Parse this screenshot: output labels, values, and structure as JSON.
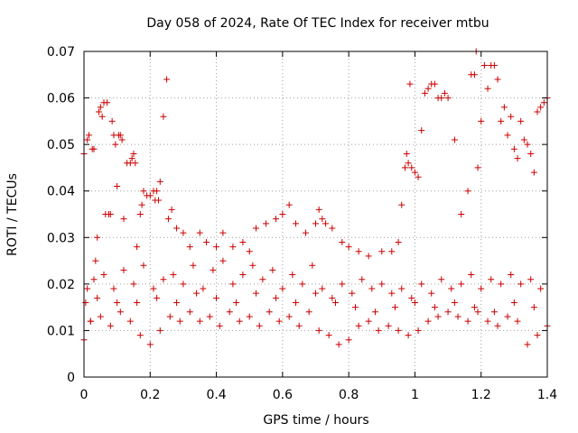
{
  "chart_data": {
    "type": "scatter",
    "title": "Day 058 of 2024, Rate Of TEC Index for receiver mtbu",
    "xlabel": "GPS time / hours",
    "ylabel": "ROTI / TECUs",
    "xlim": [
      0,
      1.4
    ],
    "ylim": [
      0,
      0.07
    ],
    "xticks": [
      0,
      0.2,
      0.4,
      0.6,
      0.8,
      1,
      1.2,
      1.4
    ],
    "yticks": [
      0,
      0.01,
      0.02,
      0.03,
      0.04,
      0.05,
      0.06,
      0.07
    ],
    "xtick_labels": [
      "0",
      "0.2",
      "0.4",
      "0.6",
      "0.8",
      "1",
      "1.2",
      "1.4"
    ],
    "ytick_labels": [
      "0",
      "0.01",
      "0.02",
      "0.03",
      "0.04",
      "0.05",
      "0.06",
      "0.07"
    ],
    "grid": true,
    "marker": "+",
    "marker_color": "#cc0000",
    "series": [
      {
        "name": "ROTI",
        "points": [
          [
            0.0,
            0.008
          ],
          [
            0.0,
            0.048
          ],
          [
            0.005,
            0.016
          ],
          [
            0.01,
            0.051
          ],
          [
            0.015,
            0.052
          ],
          [
            0.02,
            0.012
          ],
          [
            0.025,
            0.049
          ],
          [
            0.03,
            0.049
          ],
          [
            0.035,
            0.025
          ],
          [
            0.04,
            0.03
          ],
          [
            0.045,
            0.057
          ],
          [
            0.05,
            0.058
          ],
          [
            0.055,
            0.056
          ],
          [
            0.06,
            0.059
          ],
          [
            0.065,
            0.035
          ],
          [
            0.07,
            0.059
          ],
          [
            0.075,
            0.035
          ],
          [
            0.08,
            0.035
          ],
          [
            0.085,
            0.055
          ],
          [
            0.09,
            0.052
          ],
          [
            0.095,
            0.05
          ],
          [
            0.1,
            0.041
          ],
          [
            0.105,
            0.052
          ],
          [
            0.11,
            0.052
          ],
          [
            0.115,
            0.051
          ],
          [
            0.12,
            0.034
          ],
          [
            0.13,
            0.046
          ],
          [
            0.14,
            0.046
          ],
          [
            0.145,
            0.047
          ],
          [
            0.15,
            0.048
          ],
          [
            0.155,
            0.046
          ],
          [
            0.16,
            0.028
          ],
          [
            0.17,
            0.035
          ],
          [
            0.175,
            0.037
          ],
          [
            0.18,
            0.04
          ],
          [
            0.19,
            0.039
          ],
          [
            0.2,
            0.039
          ],
          [
            0.21,
            0.04
          ],
          [
            0.215,
            0.038
          ],
          [
            0.22,
            0.04
          ],
          [
            0.225,
            0.038
          ],
          [
            0.23,
            0.042
          ],
          [
            0.24,
            0.056
          ],
          [
            0.25,
            0.064
          ],
          [
            0.255,
            0.034
          ],
          [
            0.265,
            0.036
          ],
          [
            0.28,
            0.032
          ],
          [
            0.3,
            0.031
          ],
          [
            0.32,
            0.028
          ],
          [
            0.35,
            0.031
          ],
          [
            0.37,
            0.029
          ],
          [
            0.4,
            0.028
          ],
          [
            0.42,
            0.031
          ],
          [
            0.45,
            0.028
          ],
          [
            0.48,
            0.029
          ],
          [
            0.5,
            0.027
          ],
          [
            0.52,
            0.032
          ],
          [
            0.55,
            0.033
          ],
          [
            0.58,
            0.034
          ],
          [
            0.6,
            0.035
          ],
          [
            0.62,
            0.037
          ],
          [
            0.64,
            0.033
          ],
          [
            0.67,
            0.031
          ],
          [
            0.7,
            0.033
          ],
          [
            0.71,
            0.036
          ],
          [
            0.72,
            0.034
          ],
          [
            0.73,
            0.033
          ],
          [
            0.75,
            0.032
          ],
          [
            0.78,
            0.029
          ],
          [
            0.8,
            0.028
          ],
          [
            0.83,
            0.027
          ],
          [
            0.86,
            0.026
          ],
          [
            0.9,
            0.027
          ],
          [
            0.93,
            0.027
          ],
          [
            0.95,
            0.029
          ],
          [
            0.96,
            0.037
          ],
          [
            0.97,
            0.045
          ],
          [
            0.975,
            0.048
          ],
          [
            0.98,
            0.046
          ],
          [
            0.985,
            0.063
          ],
          [
            0.99,
            0.045
          ],
          [
            1.0,
            0.044
          ],
          [
            1.01,
            0.043
          ],
          [
            1.02,
            0.053
          ],
          [
            1.03,
            0.061
          ],
          [
            1.04,
            0.062
          ],
          [
            1.05,
            0.063
          ],
          [
            1.06,
            0.063
          ],
          [
            1.07,
            0.06
          ],
          [
            1.08,
            0.06
          ],
          [
            1.09,
            0.061
          ],
          [
            1.1,
            0.06
          ],
          [
            1.12,
            0.051
          ],
          [
            1.14,
            0.035
          ],
          [
            1.16,
            0.04
          ],
          [
            1.17,
            0.065
          ],
          [
            1.18,
            0.065
          ],
          [
            1.185,
            0.07
          ],
          [
            1.19,
            0.045
          ],
          [
            1.2,
            0.055
          ],
          [
            1.21,
            0.067
          ],
          [
            1.22,
            0.062
          ],
          [
            1.23,
            0.067
          ],
          [
            1.24,
            0.067
          ],
          [
            1.25,
            0.064
          ],
          [
            1.26,
            0.055
          ],
          [
            1.27,
            0.058
          ],
          [
            1.28,
            0.052
          ],
          [
            1.29,
            0.056
          ],
          [
            1.3,
            0.049
          ],
          [
            1.31,
            0.047
          ],
          [
            1.32,
            0.055
          ],
          [
            1.33,
            0.051
          ],
          [
            1.34,
            0.05
          ],
          [
            1.35,
            0.048
          ],
          [
            1.36,
            0.044
          ],
          [
            1.37,
            0.057
          ],
          [
            1.38,
            0.058
          ],
          [
            1.39,
            0.059
          ],
          [
            1.4,
            0.06
          ],
          [
            0.01,
            0.019
          ],
          [
            0.03,
            0.021
          ],
          [
            0.06,
            0.022
          ],
          [
            0.09,
            0.019
          ],
          [
            0.12,
            0.023
          ],
          [
            0.15,
            0.02
          ],
          [
            0.18,
            0.024
          ],
          [
            0.21,
            0.019
          ],
          [
            0.24,
            0.021
          ],
          [
            0.27,
            0.022
          ],
          [
            0.3,
            0.02
          ],
          [
            0.33,
            0.024
          ],
          [
            0.36,
            0.019
          ],
          [
            0.39,
            0.023
          ],
          [
            0.42,
            0.025
          ],
          [
            0.45,
            0.02
          ],
          [
            0.48,
            0.022
          ],
          [
            0.51,
            0.024
          ],
          [
            0.54,
            0.021
          ],
          [
            0.57,
            0.023
          ],
          [
            0.6,
            0.019
          ],
          [
            0.63,
            0.022
          ],
          [
            0.66,
            0.02
          ],
          [
            0.69,
            0.024
          ],
          [
            0.72,
            0.019
          ],
          [
            0.75,
            0.017
          ],
          [
            0.78,
            0.02
          ],
          [
            0.81,
            0.018
          ],
          [
            0.84,
            0.021
          ],
          [
            0.87,
            0.019
          ],
          [
            0.9,
            0.02
          ],
          [
            0.93,
            0.018
          ],
          [
            0.96,
            0.019
          ],
          [
            0.99,
            0.017
          ],
          [
            1.02,
            0.02
          ],
          [
            1.05,
            0.018
          ],
          [
            1.08,
            0.021
          ],
          [
            1.11,
            0.019
          ],
          [
            1.14,
            0.02
          ],
          [
            1.17,
            0.022
          ],
          [
            1.2,
            0.019
          ],
          [
            1.23,
            0.021
          ],
          [
            1.26,
            0.02
          ],
          [
            1.29,
            0.022
          ],
          [
            1.32,
            0.02
          ],
          [
            1.35,
            0.021
          ],
          [
            1.38,
            0.019
          ],
          [
            0.02,
            0.012
          ],
          [
            0.05,
            0.013
          ],
          [
            0.08,
            0.011
          ],
          [
            0.11,
            0.014
          ],
          [
            0.14,
            0.012
          ],
          [
            0.17,
            0.009
          ],
          [
            0.2,
            0.007
          ],
          [
            0.23,
            0.01
          ],
          [
            0.26,
            0.013
          ],
          [
            0.29,
            0.012
          ],
          [
            0.32,
            0.014
          ],
          [
            0.35,
            0.012
          ],
          [
            0.38,
            0.013
          ],
          [
            0.41,
            0.011
          ],
          [
            0.44,
            0.014
          ],
          [
            0.47,
            0.012
          ],
          [
            0.5,
            0.013
          ],
          [
            0.53,
            0.011
          ],
          [
            0.56,
            0.014
          ],
          [
            0.59,
            0.012
          ],
          [
            0.62,
            0.013
          ],
          [
            0.65,
            0.011
          ],
          [
            0.68,
            0.014
          ],
          [
            0.71,
            0.01
          ],
          [
            0.74,
            0.009
          ],
          [
            0.77,
            0.007
          ],
          [
            0.8,
            0.008
          ],
          [
            0.83,
            0.011
          ],
          [
            0.86,
            0.012
          ],
          [
            0.89,
            0.01
          ],
          [
            0.92,
            0.011
          ],
          [
            0.95,
            0.01
          ],
          [
            0.98,
            0.009
          ],
          [
            1.01,
            0.01
          ],
          [
            1.04,
            0.012
          ],
          [
            1.07,
            0.013
          ],
          [
            1.1,
            0.014
          ],
          [
            1.13,
            0.013
          ],
          [
            1.16,
            0.012
          ],
          [
            1.19,
            0.014
          ],
          [
            1.22,
            0.012
          ],
          [
            1.25,
            0.011
          ],
          [
            1.28,
            0.013
          ],
          [
            1.31,
            0.012
          ],
          [
            1.34,
            0.007
          ],
          [
            1.37,
            0.009
          ],
          [
            1.4,
            0.011
          ],
          [
            0.04,
            0.017
          ],
          [
            0.1,
            0.016
          ],
          [
            0.16,
            0.016
          ],
          [
            0.22,
            0.017
          ],
          [
            0.28,
            0.016
          ],
          [
            0.34,
            0.018
          ],
          [
            0.4,
            0.017
          ],
          [
            0.46,
            0.016
          ],
          [
            0.52,
            0.018
          ],
          [
            0.58,
            0.017
          ],
          [
            0.64,
            0.016
          ],
          [
            0.7,
            0.018
          ],
          [
            0.76,
            0.016
          ],
          [
            0.82,
            0.015
          ],
          [
            0.88,
            0.014
          ],
          [
            0.94,
            0.015
          ],
          [
            1.0,
            0.016
          ],
          [
            1.06,
            0.015
          ],
          [
            1.12,
            0.016
          ],
          [
            1.18,
            0.015
          ],
          [
            1.24,
            0.014
          ],
          [
            1.3,
            0.016
          ],
          [
            1.36,
            0.015
          ]
        ]
      }
    ]
  }
}
